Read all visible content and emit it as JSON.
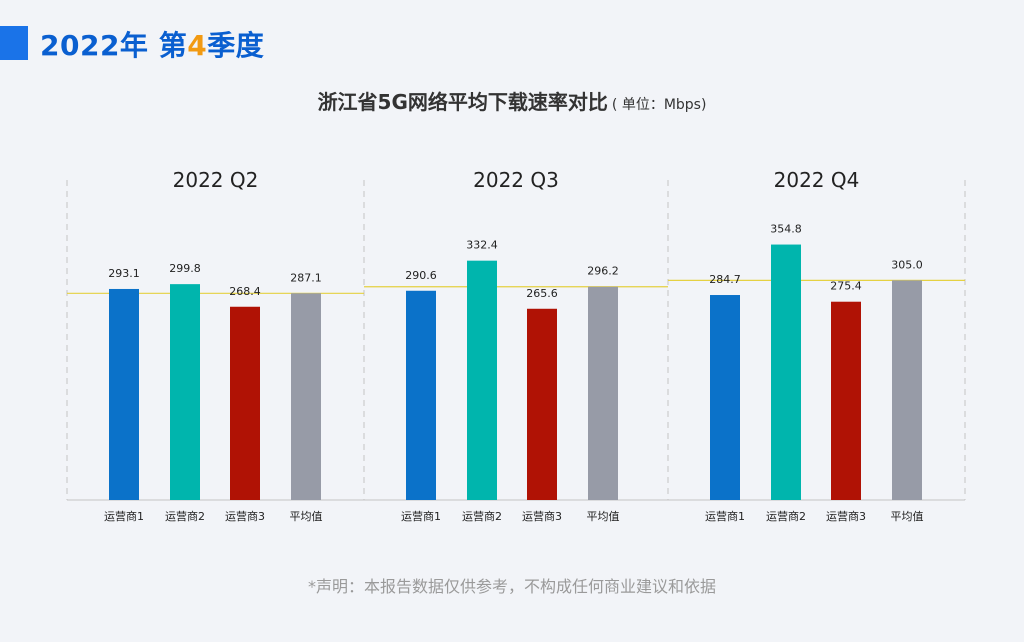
{
  "header": {
    "year_label": "2022年",
    "quarter_prefix": "第",
    "quarter_number": "4",
    "quarter_suffix": "季度",
    "accent_color": "#1a73e8",
    "number_color": "#f29a12"
  },
  "note": "*声明：本报告数据仅供参考，不构成任何商业建议和依据",
  "chart_data": {
    "type": "bar",
    "title": "浙江省5G网络平均下载速率对比",
    "unit_label": "( 单位：Mbps)",
    "categories": [
      "运营商1",
      "运营商2",
      "运营商3",
      "平均值"
    ],
    "colors": [
      "#0b72c9",
      "#00b5ad",
      "#b01205",
      "#979ba7"
    ],
    "reference_line_color": "#e5d142",
    "ylim": [
      0,
      400
    ],
    "panels": [
      {
        "label": "2022 Q2",
        "values": [
          293.1,
          299.8,
          268.4,
          287.1
        ],
        "value_labels": [
          "293.1",
          "299.8",
          "268.4",
          "287.1"
        ]
      },
      {
        "label": "2022 Q3",
        "values": [
          290.6,
          332.4,
          265.6,
          296.2
        ],
        "value_labels": [
          "290.6",
          "332.4",
          "265.6",
          "296.2"
        ]
      },
      {
        "label": "2022 Q4",
        "values": [
          284.7,
          354.8,
          275.4,
          305.0
        ],
        "value_labels": [
          "284.7",
          "354.8",
          "275.4",
          "305.0"
        ]
      }
    ]
  }
}
